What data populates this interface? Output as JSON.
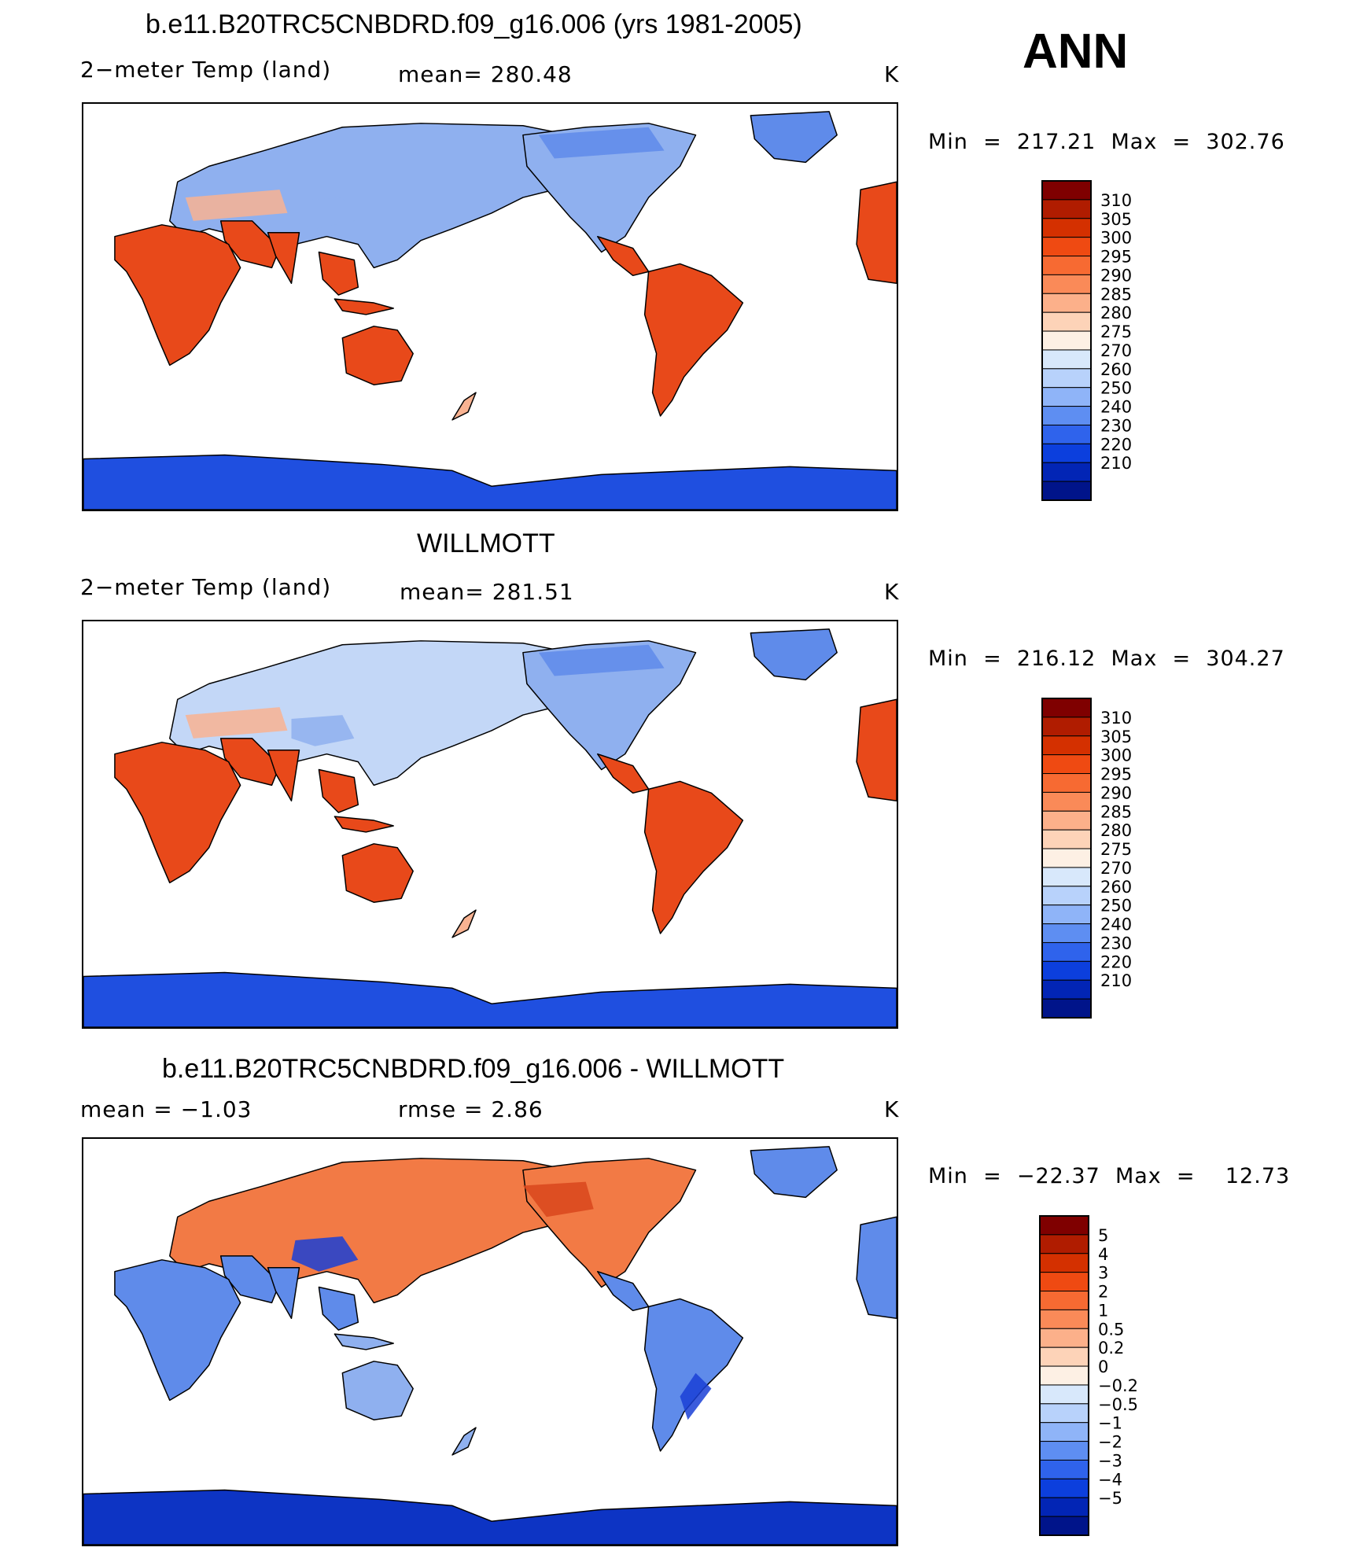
{
  "header": {
    "season": "ANN"
  },
  "panels": [
    {
      "title": "b.e11.B20TRC5CNBDRD.f09_g16.006 (yrs 1981-2005)",
      "left_label": "2−meter Temp (land)",
      "mid_label": "mean=  280.48",
      "units": "K",
      "minmax": "Min  =  217.21  Max  =  302.76",
      "kind": "model"
    },
    {
      "title": "WILLMOTT",
      "left_label": "2−meter Temp (land)",
      "mid_label": "mean=  281.51",
      "units": "K",
      "minmax": "Min  =  216.12  Max  =  304.27",
      "kind": "obs"
    },
    {
      "title": "b.e11.B20TRC5CNBDRD.f09_g16.006 - WILLMOTT",
      "left_label": "mean  =    −1.03",
      "mid_label": "rmse  =     2.86",
      "units": "K",
      "minmax": "Min  =  −22.37  Max  =    12.73",
      "kind": "diff"
    }
  ],
  "colorbars": {
    "absolute": {
      "labels": [
        "310",
        "305",
        "300",
        "295",
        "290",
        "285",
        "280",
        "275",
        "270",
        "260",
        "250",
        "240",
        "230",
        "220",
        "210"
      ],
      "colors": [
        "#7f0000",
        "#b01c00",
        "#d43000",
        "#ef4a12",
        "#f76a32",
        "#fa8a58",
        "#fcb08a",
        "#fdd3b8",
        "#fdf0e4",
        "#d8e8fb",
        "#b8d2fb",
        "#8fb4f8",
        "#5e8ef2",
        "#2f63ec",
        "#0c3fdd",
        "#0225b5",
        "#00148a"
      ]
    },
    "difference": {
      "labels": [
        "5",
        "4",
        "3",
        "2",
        "1",
        "0.5",
        "0.2",
        "0",
        "−0.2",
        "−0.5",
        "−1",
        "−2",
        "−3",
        "−4",
        "−5"
      ],
      "colors": [
        "#7f0000",
        "#b01c00",
        "#d43000",
        "#ef4a12",
        "#f76a32",
        "#fa8a58",
        "#fcb08a",
        "#fdd3b8",
        "#fdf0e4",
        "#d8e8fb",
        "#b8d2fb",
        "#8fb4f8",
        "#5e8ef2",
        "#2f63ec",
        "#0c3fdd",
        "#0225b5",
        "#00148a"
      ]
    }
  },
  "map_colors": {
    "hot": "#e8491a",
    "warm": "#f27a45",
    "mild": "#f9b392",
    "cool": "#c3d7f7",
    "cold": "#8fb0ef",
    "very_cold": "#5f8bea",
    "ice": "#1f4fe0",
    "ice_deep": "#0d34c4",
    "outline": "#000000"
  }
}
